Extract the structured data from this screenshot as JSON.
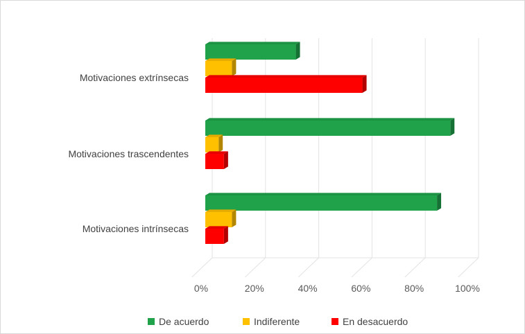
{
  "chart_data": {
    "type": "bar",
    "orientation": "horizontal",
    "categories": [
      "Motivaciones extrínsecas",
      "Motivaciones trascendentes",
      "Motivaciones intrínsecas"
    ],
    "series": [
      {
        "name": "De acuerdo",
        "color": "#1fa24a",
        "values": [
          34,
          92,
          87
        ]
      },
      {
        "name": "Indiferente",
        "color": "#ffc000",
        "values": [
          10,
          5,
          10
        ]
      },
      {
        "name": "En desacuerdo",
        "color": "#ff0000",
        "values": [
          59,
          7,
          7
        ]
      }
    ],
    "xlim": [
      0,
      100
    ],
    "ticks": [
      "0%",
      "20%",
      "40%",
      "60%",
      "80%",
      "100%"
    ],
    "grid": true,
    "legend": "bottom",
    "title": "",
    "xlabel": "",
    "ylabel": ""
  }
}
